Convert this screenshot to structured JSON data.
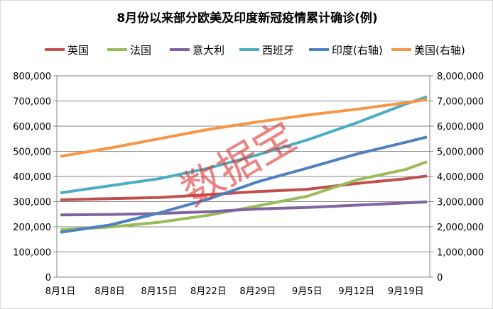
{
  "chart_data": {
    "type": "line",
    "title": "8月份以来部分欧美及印度新冠疫情累计确诊(例)",
    "x_labels": [
      "8月1日",
      "8月8日",
      "8月15日",
      "8月22日",
      "8月29日",
      "9月5日",
      "9月12日",
      "9月19日"
    ],
    "x_day_index": [
      0,
      7,
      14,
      21,
      28,
      35,
      42,
      49,
      52
    ],
    "left_axis": {
      "min": 0,
      "max": 800000,
      "step": 100000,
      "ticks": [
        "0",
        "100,000",
        "200,000",
        "300,000",
        "400,000",
        "500,000",
        "600,000",
        "700,000",
        "800,000"
      ]
    },
    "right_axis": {
      "min": 0,
      "max": 8000000,
      "step": 1000000,
      "ticks": [
        "0",
        "1,000,000",
        "2,000,000",
        "3,000,000",
        "4,000,000",
        "5,000,000",
        "6,000,000",
        "7,000,000",
        "8,000,000"
      ]
    },
    "grid": true,
    "legend_position": "top",
    "series": [
      {
        "name": "英国",
        "axis": "left",
        "color": "#C0504D",
        "values": [
          307000,
          312000,
          316000,
          328000,
          340000,
          349000,
          372000,
          391000,
          402000
        ]
      },
      {
        "name": "法国",
        "axis": "left",
        "color": "#9BBB59",
        "values": [
          188000,
          199000,
          218000,
          246000,
          283000,
          321000,
          386000,
          428000,
          459000
        ]
      },
      {
        "name": "意大利",
        "axis": "left",
        "color": "#8064A2",
        "values": [
          247000,
          249000,
          253000,
          260000,
          271000,
          277000,
          286000,
          295000,
          299000
        ]
      },
      {
        "name": "西班牙",
        "axis": "left",
        "color": "#4BACC6",
        "values": [
          335000,
          363000,
          391000,
          433000,
          486000,
          545000,
          613000,
          688000,
          717000
        ]
      },
      {
        "name": "印度(右轴)",
        "axis": "right",
        "color": "#4F81BD",
        "values": [
          1780000,
          2070000,
          2550000,
          3100000,
          3790000,
          4330000,
          4890000,
          5360000,
          5570000
        ]
      },
      {
        "name": "美国(右轴)",
        "axis": "right",
        "color": "#F79646",
        "values": [
          4800000,
          5130000,
          5500000,
          5870000,
          6170000,
          6440000,
          6670000,
          6930000,
          7060000
        ]
      }
    ]
  },
  "watermark": "数据宝"
}
